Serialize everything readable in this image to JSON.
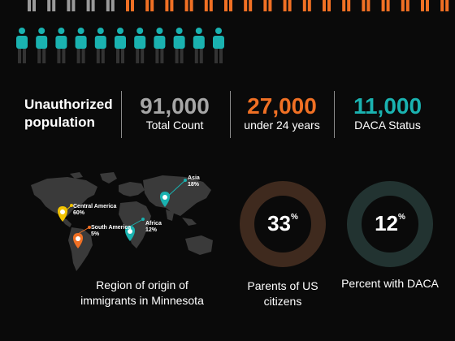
{
  "stats": {
    "heading": "Unauthorized population",
    "items": [
      {
        "value": "91,000",
        "label": "Total Count",
        "color": "#a6a6a6"
      },
      {
        "value": "27,000",
        "label": "under 24 years",
        "color": "#f07024"
      },
      {
        "value": "11,000",
        "label": "DACA Status",
        "color": "#1ab2b0"
      }
    ]
  },
  "people_icons": {
    "row1_colors": [
      "#9a9a9a",
      "#9a9a9a",
      "#9a9a9a",
      "#9a9a9a",
      "#9a9a9a",
      "#f07024",
      "#f07024",
      "#f07024",
      "#f07024",
      "#f07024",
      "#f07024",
      "#f07024",
      "#f07024",
      "#f07024",
      "#f07024",
      "#f07024",
      "#f07024",
      "#f07024",
      "#f07024",
      "#f07024",
      "#f07024",
      "#f07024"
    ],
    "row2_colors": [
      "#1ab2b0",
      "#1ab2b0",
      "#1ab2b0",
      "#1ab2b0",
      "#1ab2b0",
      "#1ab2b0",
      "#1ab2b0",
      "#1ab2b0",
      "#1ab2b0",
      "#1ab2b0",
      "#1ab2b0"
    ]
  },
  "map": {
    "caption": "Region of origin of immigrants in Minnesota",
    "regions": [
      {
        "name": "Asia",
        "share": "18%",
        "color": "#1ab2b0"
      },
      {
        "name": "Central America",
        "share": "60%",
        "color": "#f2c300"
      },
      {
        "name": "South America",
        "share": "5%",
        "color": "#f07024"
      },
      {
        "name": "Africa",
        "share": "12%",
        "color": "#1ab2b0"
      }
    ]
  },
  "donuts": [
    {
      "value": 33,
      "display": "33",
      "unit": "%",
      "caption": "Parents of US citizens",
      "fill": "#f07024",
      "track": "#3f2a1e"
    },
    {
      "value": 12,
      "display": "12",
      "unit": "%",
      "caption": "Percent with DACA",
      "fill": "#1ab2b0",
      "track": "#223331"
    }
  ]
}
